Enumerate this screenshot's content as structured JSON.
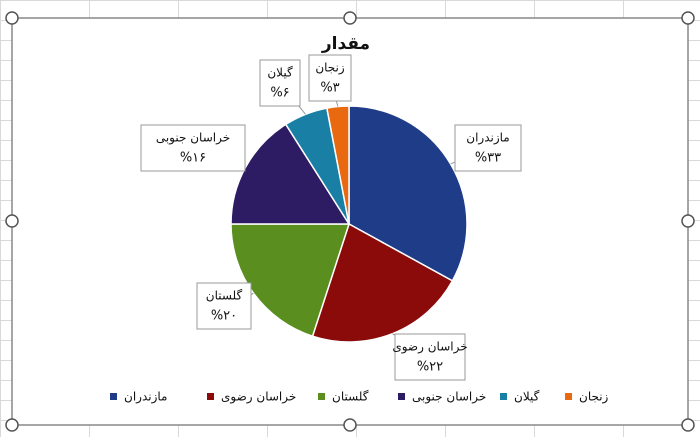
{
  "chart_data": {
    "type": "pie",
    "title": "مقدار",
    "categories": [
      "مازندران",
      "خراسان رضوی",
      "گلستان",
      "خراسان جنوبی",
      "گیلان",
      "زنجان"
    ],
    "values": [
      33,
      22,
      20,
      16,
      6,
      3
    ],
    "value_labels": [
      "%۳۳",
      "%۲۲",
      "%۲۰",
      "%۱۶",
      "%۶",
      "%۳"
    ],
    "colors": [
      "#1f3c88",
      "#8b0a0a",
      "#5a8f1f",
      "#2d1b63",
      "#1a7fa5",
      "#e8690f"
    ],
    "legend": "bottom"
  }
}
